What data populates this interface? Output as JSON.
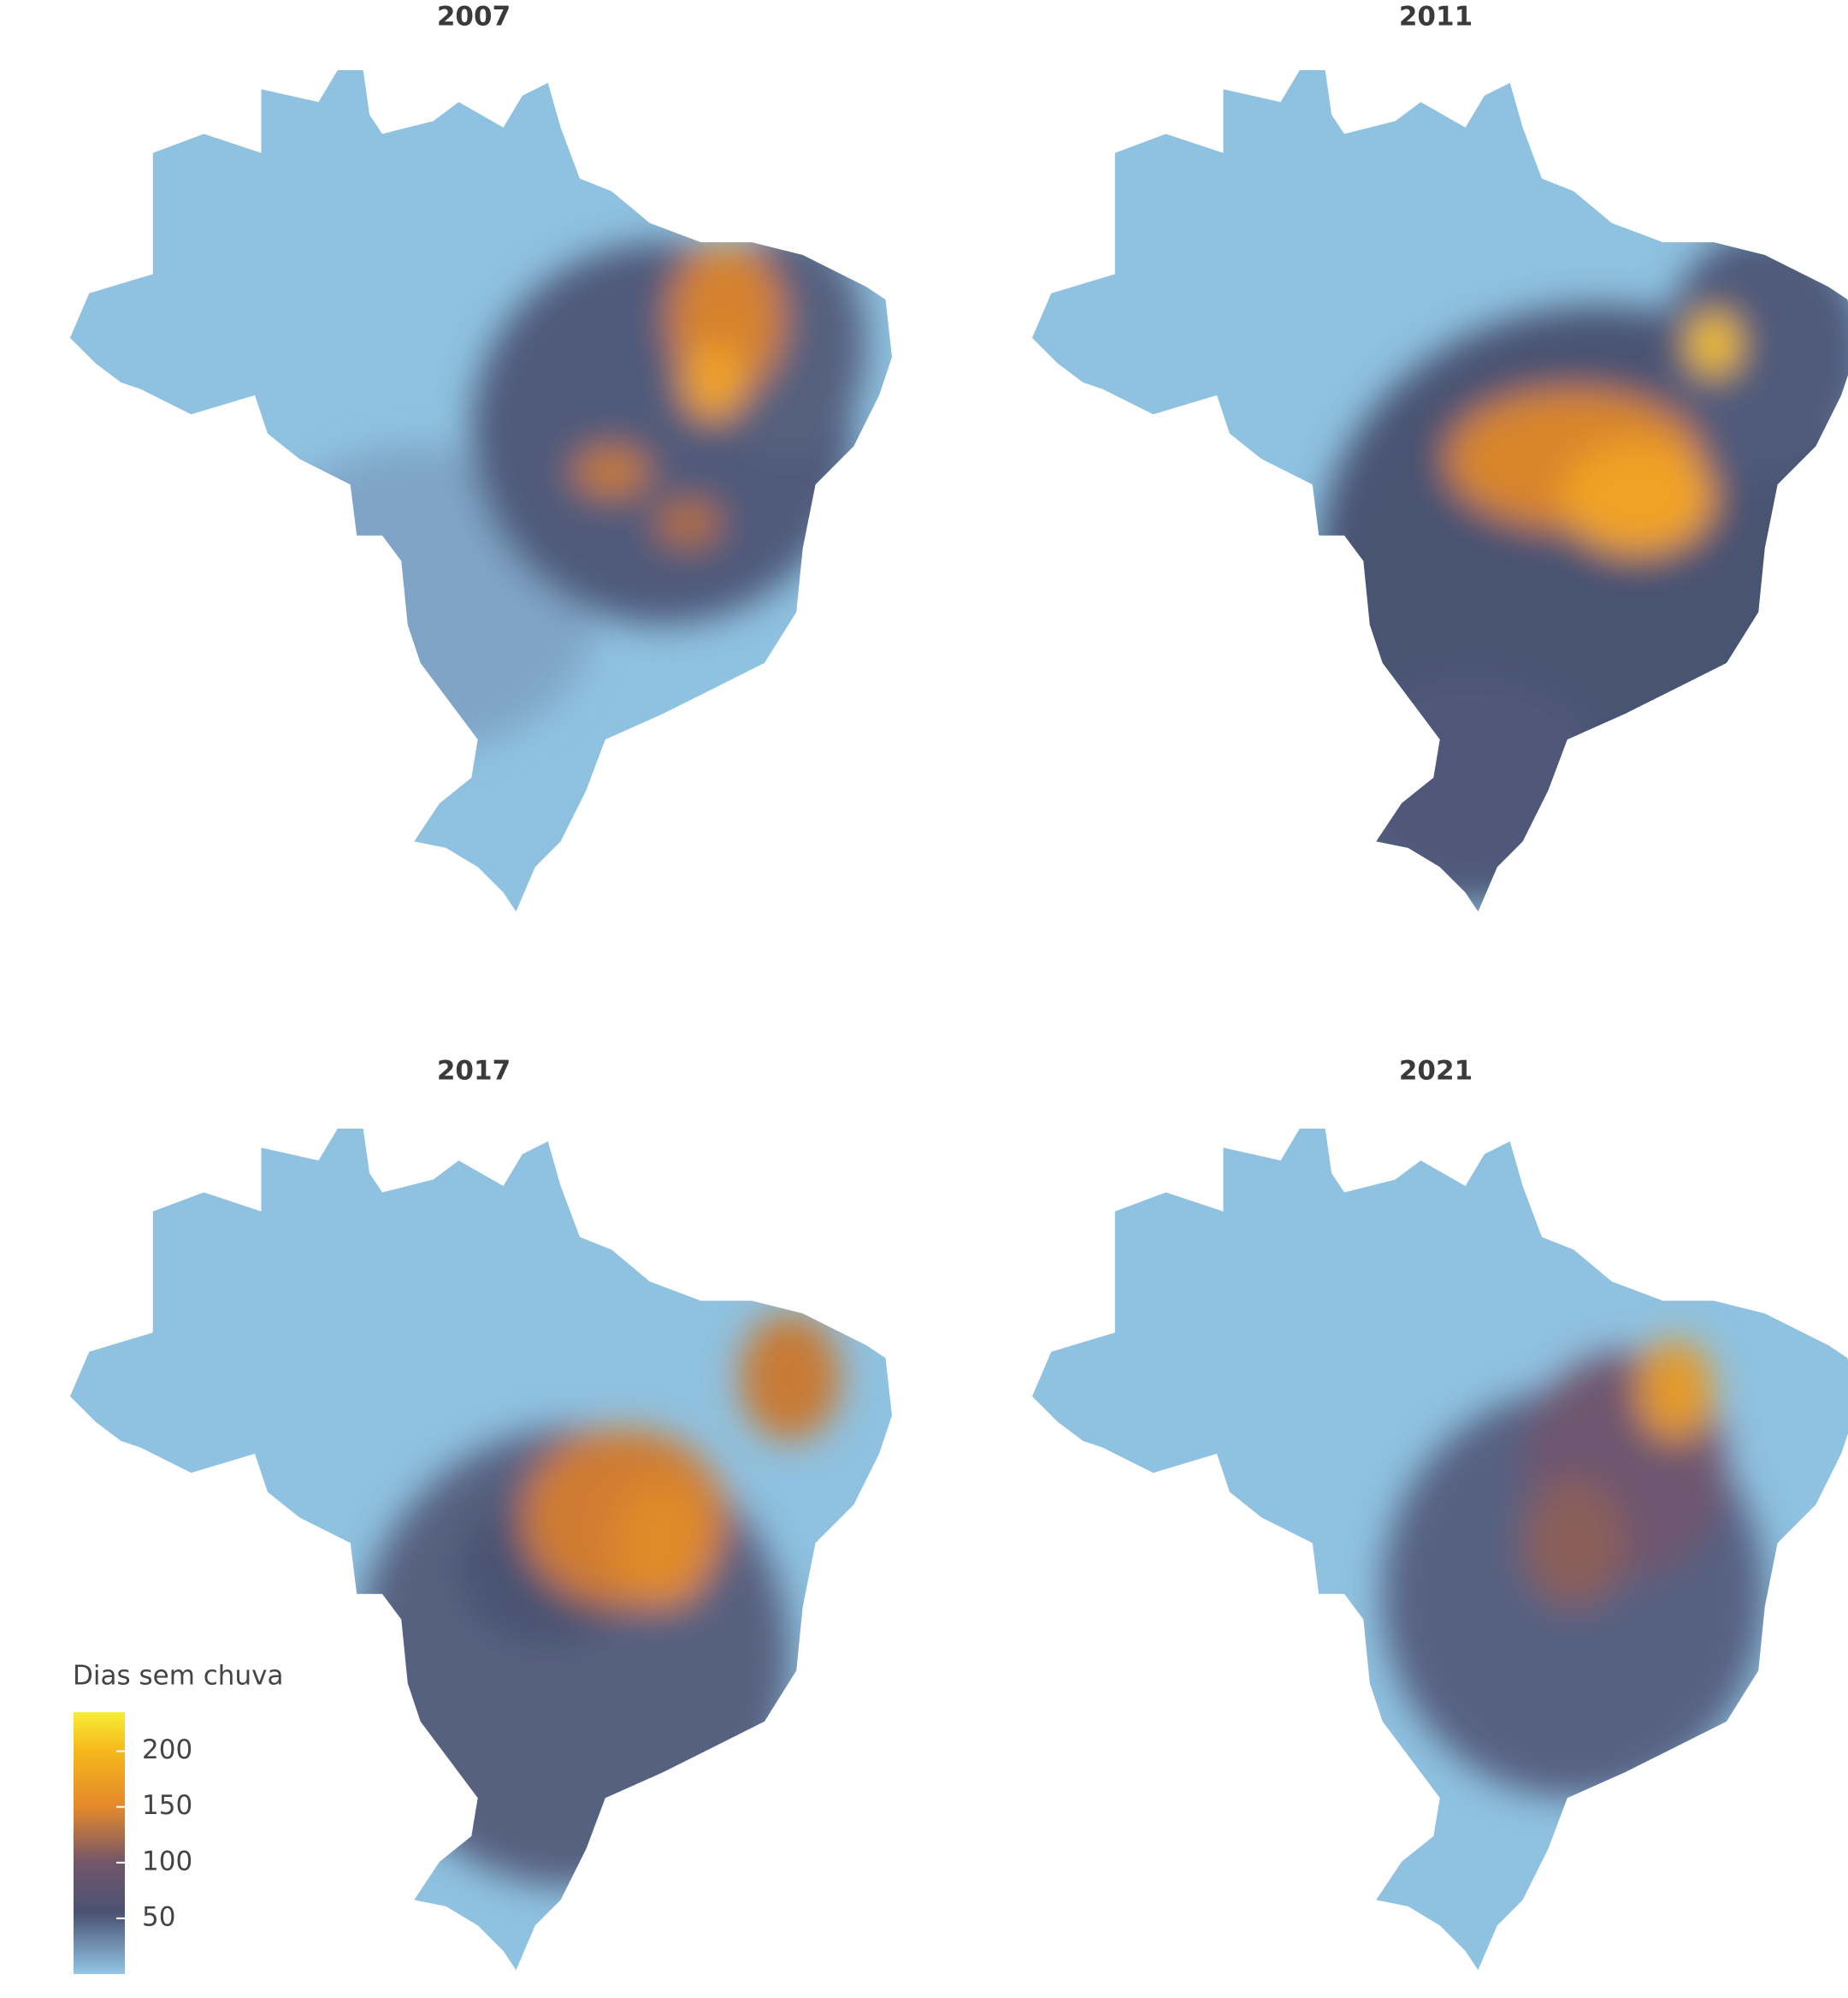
{
  "maps": [
    {
      "title": "2007"
    },
    {
      "title": "2011"
    },
    {
      "title": "2017"
    },
    {
      "title": "2021"
    }
  ],
  "legend": {
    "title": "Dias sem chuva",
    "range": [
      0,
      235
    ],
    "ticks": [
      50,
      100,
      150,
      200
    ],
    "stops": [
      {
        "value": 0,
        "color": "#93c6e6"
      },
      {
        "value": 55,
        "color": "#4a5272"
      },
      {
        "value": 100,
        "color": "#72566a"
      },
      {
        "value": 150,
        "color": "#e4882a"
      },
      {
        "value": 200,
        "color": "#f6b81c"
      },
      {
        "value": 235,
        "color": "#f8ec34"
      }
    ]
  }
}
